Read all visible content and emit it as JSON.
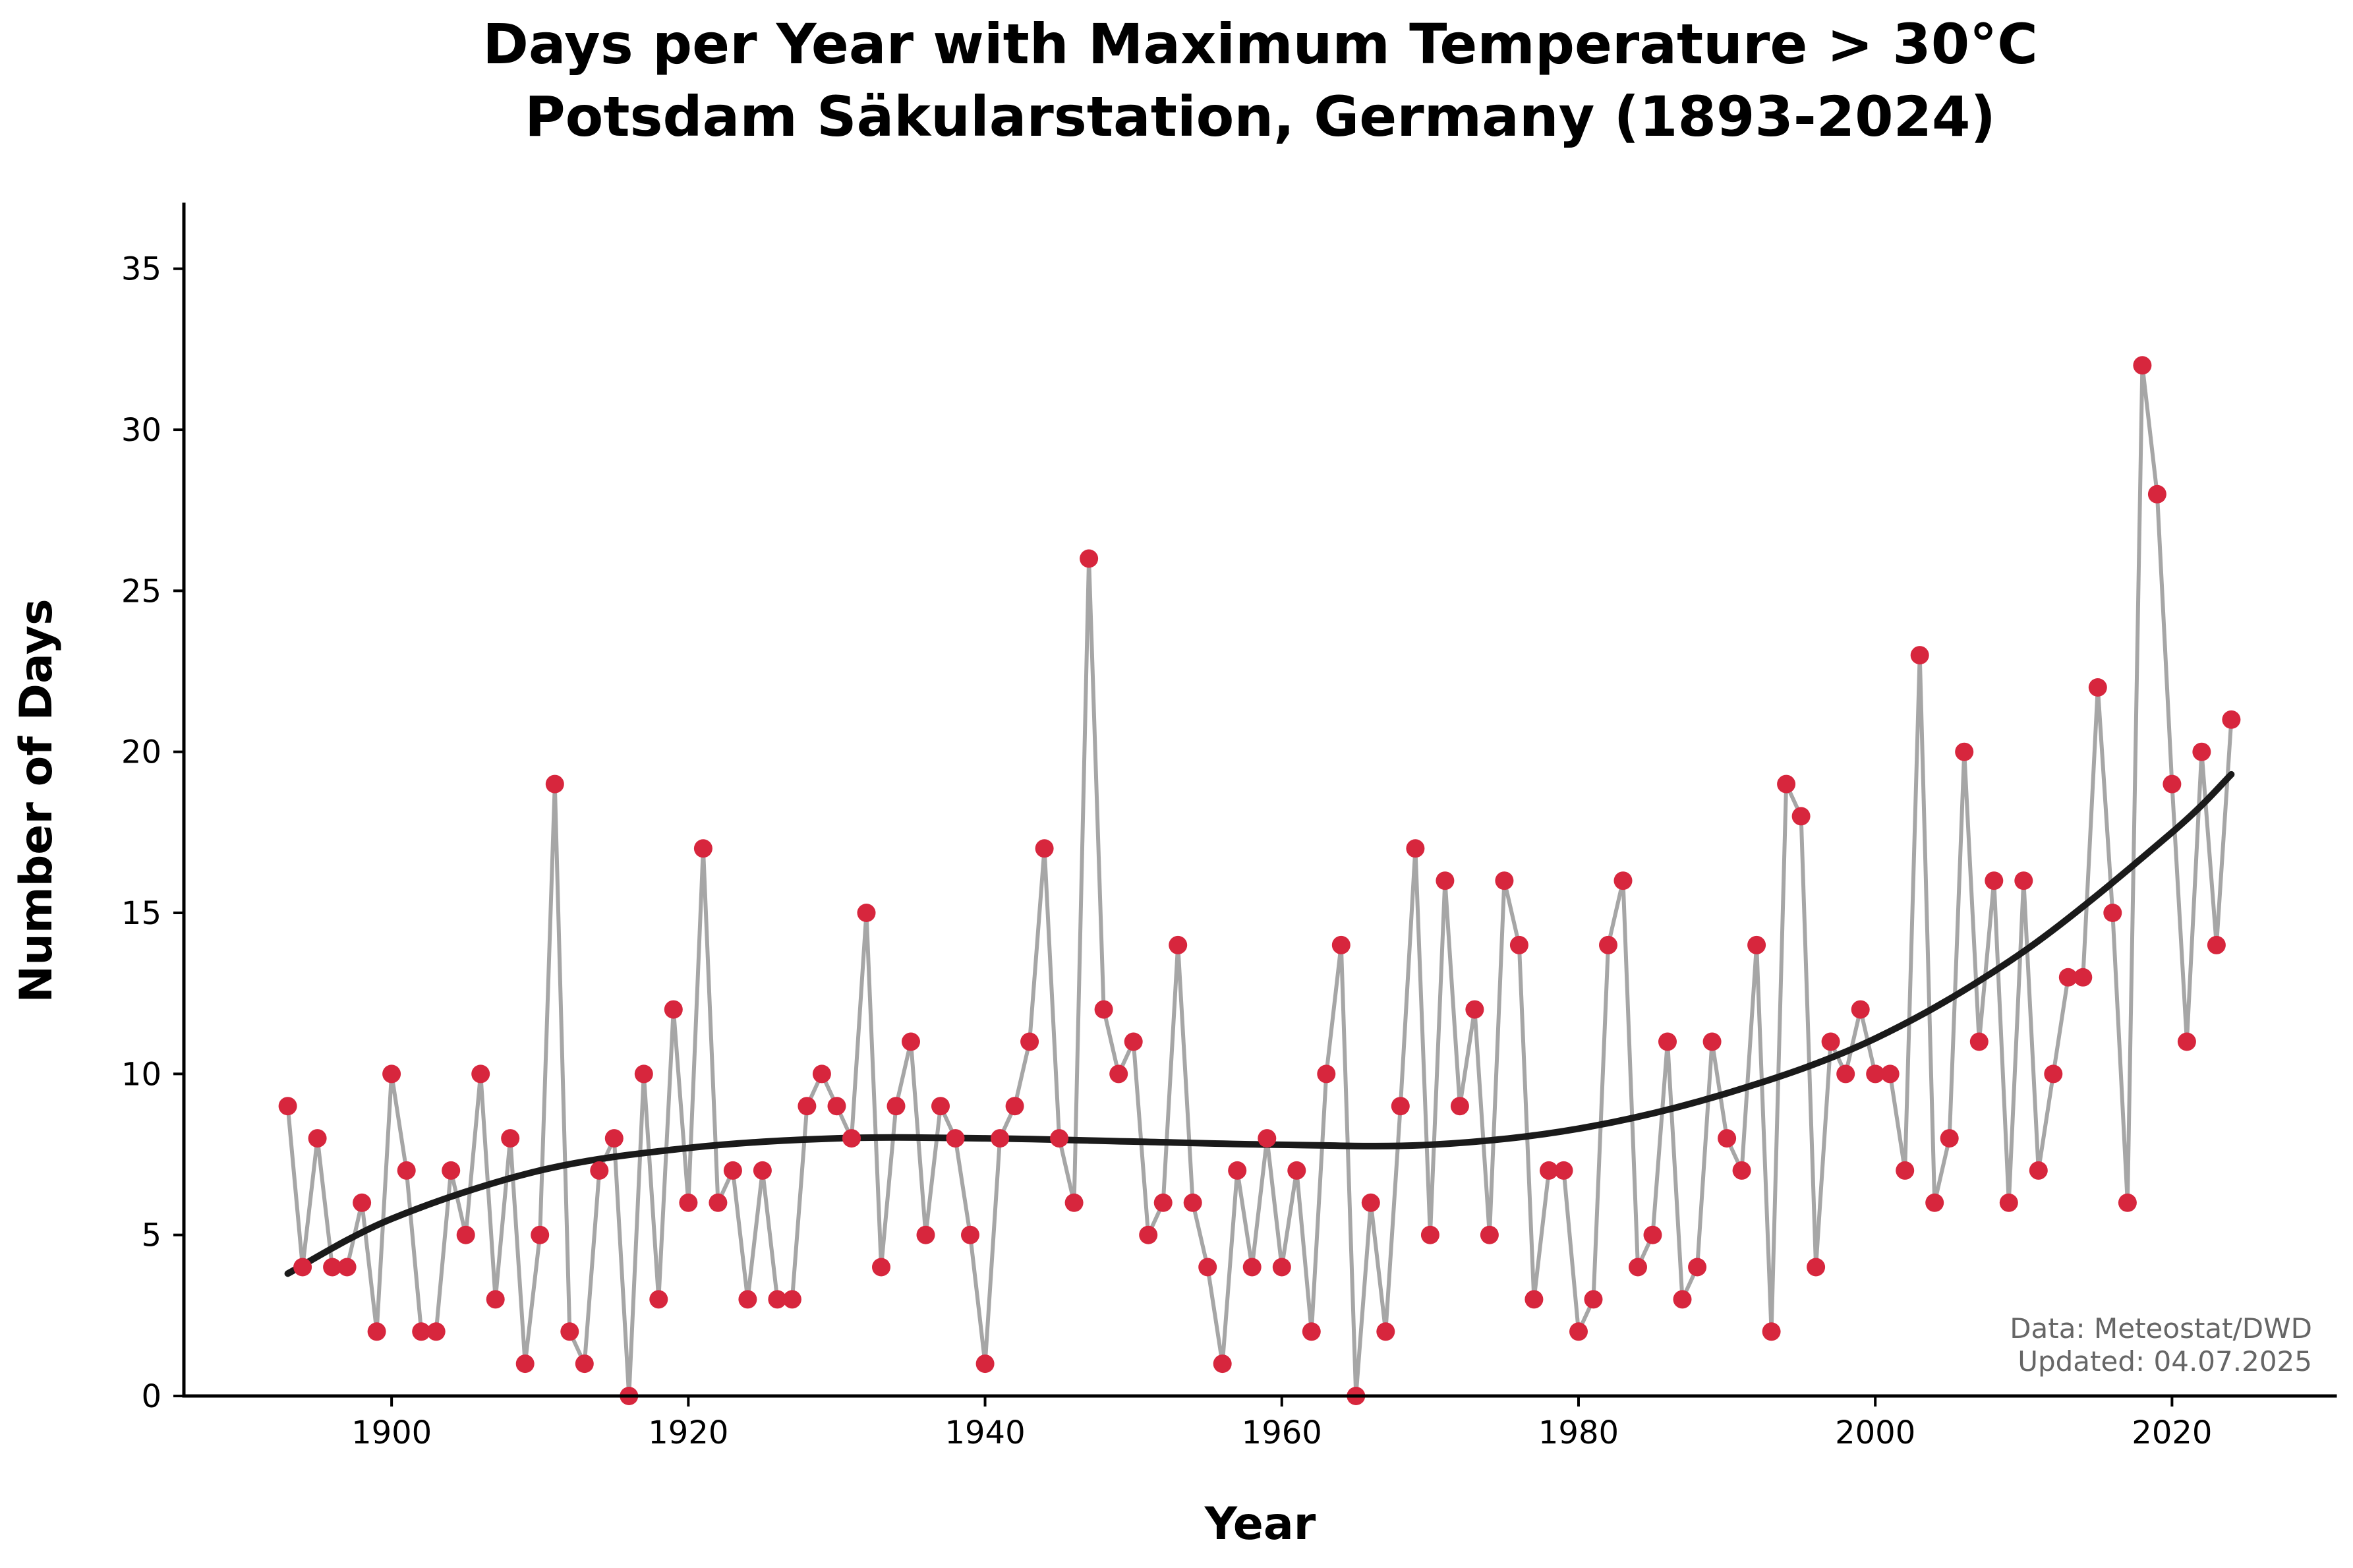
{
  "chart_data": {
    "type": "line",
    "title": "Days per Year with Maximum Temperature > 30°C",
    "subtitle": "Potsdam Säkularstation, Germany (1893-2024)",
    "xlabel": "Year",
    "ylabel": "Number of Days",
    "xlim": [
      1886,
      2031
    ],
    "ylim": [
      0,
      37
    ],
    "xticks": [
      1900,
      1920,
      1940,
      1960,
      1980,
      2000,
      2020
    ],
    "yticks": [
      0,
      5,
      10,
      15,
      20,
      25,
      30,
      35
    ],
    "grid": false,
    "years_start": 1893,
    "series": [
      {
        "kind": "observed",
        "line_color": "#a6a6a6",
        "marker_color": "#d7263d",
        "values": [
          9,
          4,
          8,
          4,
          4,
          6,
          2,
          10,
          7,
          2,
          2,
          7,
          5,
          10,
          3,
          8,
          1,
          5,
          19,
          2,
          1,
          7,
          8,
          0,
          10,
          3,
          12,
          6,
          17,
          6,
          7,
          3,
          7,
          3,
          3,
          9,
          10,
          9,
          8,
          15,
          4,
          9,
          11,
          5,
          9,
          8,
          5,
          1,
          8,
          9,
          11,
          17,
          8,
          6,
          26,
          12,
          10,
          11,
          5,
          6,
          14,
          6,
          4,
          1,
          7,
          4,
          8,
          4,
          7,
          2,
          10,
          14,
          0,
          6,
          2,
          9,
          17,
          5,
          16,
          9,
          12,
          5,
          16,
          14,
          3,
          7,
          7,
          2,
          3,
          14,
          16,
          4,
          5,
          11,
          3,
          4,
          11,
          8,
          7,
          14,
          2,
          19,
          18,
          4,
          11,
          10,
          12,
          10,
          10,
          7,
          23,
          6,
          8,
          20,
          11,
          16,
          6,
          16,
          7,
          10,
          13,
          13,
          22,
          15,
          6,
          32,
          28,
          19,
          11,
          20,
          14,
          21
        ]
      },
      {
        "kind": "trend",
        "line_color": "#1a1a1a",
        "x": [
          1893,
          1900,
          1910,
          1920,
          1930,
          1940,
          1950,
          1960,
          1970,
          1980,
          1990,
          2000,
          2010,
          2020,
          2024
        ],
        "values": [
          3.8,
          5.5,
          7.0,
          7.7,
          8.0,
          8.0,
          7.9,
          7.8,
          7.8,
          8.3,
          9.4,
          11.1,
          13.8,
          17.5,
          19.3
        ]
      }
    ]
  },
  "annotation": {
    "source": "Data: Meteostat/DWD",
    "updated": "Updated: 04.07.2025"
  }
}
